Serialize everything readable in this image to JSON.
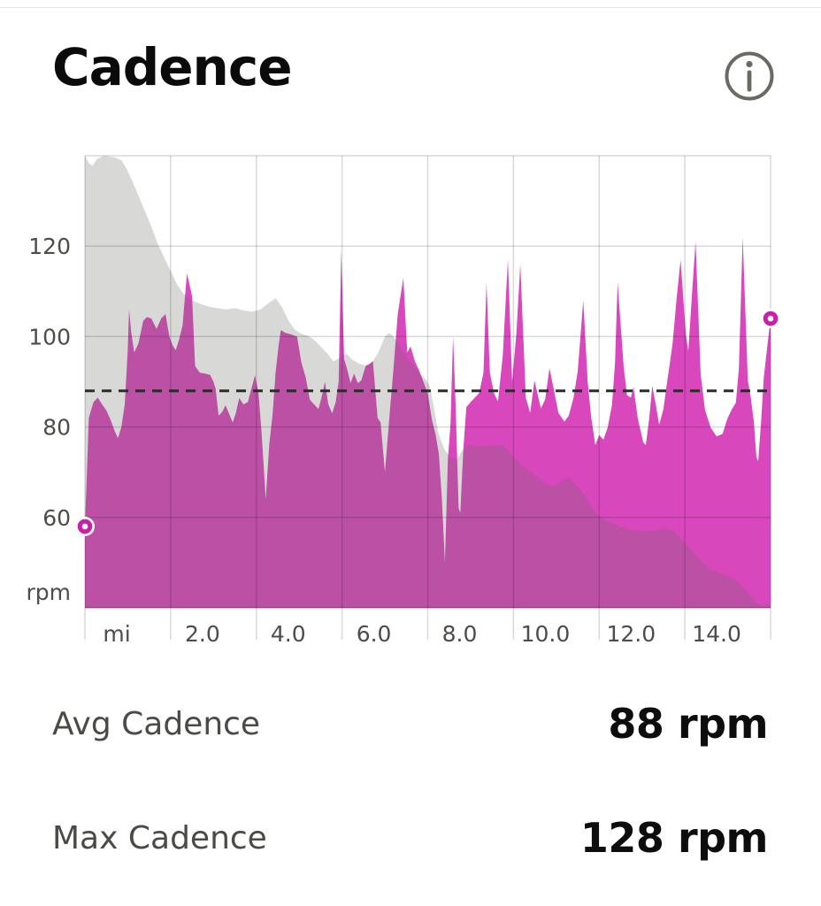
{
  "header": {
    "title": "Cadence"
  },
  "stats": [
    {
      "label": "Avg Cadence",
      "value": "88 rpm"
    },
    {
      "label": "Max Cadence",
      "value": "128 rpm"
    }
  ],
  "colors": {
    "accent_magenta": "#d848bc",
    "marker_ring": "#cc1ea8",
    "elevation_overlay": "rgba(105,105,100,0.26)",
    "avg_line": "#2b2b28",
    "grid_line": "rgba(0,0,0,0.15)",
    "axis_line": "rgba(0,0,0,0.22)",
    "axis_text": "#4c4c48",
    "icon_gray": "#6a6a63"
  },
  "chart_data": {
    "type": "area",
    "title": "Cadence",
    "grid": true,
    "legend": "none",
    "x_axis": {
      "unit_label": "mi",
      "min": 0,
      "max": 16,
      "gridline_step": 2,
      "tick_labels": [
        "mi",
        "2.0",
        "4.0",
        "6.0",
        "8.0",
        "10.0",
        "12.0",
        "14.0"
      ]
    },
    "y_axis": {
      "unit_label": "rpm",
      "min": 40,
      "max": 140,
      "tick_values": [
        60,
        80,
        100,
        120
      ]
    },
    "avg_line_rpm": 88,
    "start_marker": {
      "mi": 0,
      "rpm": 58
    },
    "end_marker": {
      "mi": 16,
      "rpm": 104
    },
    "series": [
      {
        "name": "cadence_rpm",
        "style": "area",
        "color": "#d848bc",
        "points": [
          [
            0,
            58
          ],
          [
            0.04,
            68
          ],
          [
            0.09,
            82
          ],
          [
            0.2,
            85.5
          ],
          [
            0.3,
            86.5
          ],
          [
            0.4,
            85
          ],
          [
            0.5,
            83.7
          ],
          [
            0.6,
            81.5
          ],
          [
            0.7,
            79
          ],
          [
            0.77,
            77.5
          ],
          [
            0.85,
            80
          ],
          [
            0.93,
            85
          ],
          [
            1.0,
            97
          ],
          [
            1.03,
            106
          ],
          [
            1.08,
            101
          ],
          [
            1.15,
            96.5
          ],
          [
            1.25,
            98.5
          ],
          [
            1.36,
            103.5
          ],
          [
            1.45,
            104.3
          ],
          [
            1.55,
            104
          ],
          [
            1.67,
            101.7
          ],
          [
            1.78,
            104
          ],
          [
            1.88,
            105
          ],
          [
            1.97,
            100
          ],
          [
            2.05,
            98
          ],
          [
            2.12,
            97
          ],
          [
            2.2,
            99.5
          ],
          [
            2.28,
            102.5
          ],
          [
            2.38,
            114
          ],
          [
            2.5,
            109
          ],
          [
            2.57,
            93.5
          ],
          [
            2.68,
            92
          ],
          [
            2.8,
            91.8
          ],
          [
            2.92,
            91.5
          ],
          [
            3.0,
            90
          ],
          [
            3.05,
            88.5
          ],
          [
            3.12,
            82.5
          ],
          [
            3.2,
            83.3
          ],
          [
            3.28,
            84.8
          ],
          [
            3.36,
            83
          ],
          [
            3.45,
            81
          ],
          [
            3.52,
            83
          ],
          [
            3.6,
            86.4
          ],
          [
            3.7,
            85
          ],
          [
            3.8,
            85.5
          ],
          [
            3.9,
            89
          ],
          [
            3.97,
            91.4
          ],
          [
            4.05,
            87.5
          ],
          [
            4.12,
            79
          ],
          [
            4.22,
            64
          ],
          [
            4.3,
            76
          ],
          [
            4.38,
            83
          ],
          [
            4.45,
            92
          ],
          [
            4.52,
            98
          ],
          [
            4.57,
            101.4
          ],
          [
            4.68,
            100.8
          ],
          [
            4.8,
            100.5
          ],
          [
            4.95,
            100
          ],
          [
            5.05,
            94.3
          ],
          [
            5.15,
            91
          ],
          [
            5.25,
            86
          ],
          [
            5.35,
            85
          ],
          [
            5.45,
            84
          ],
          [
            5.52,
            86.5
          ],
          [
            5.6,
            90
          ],
          [
            5.68,
            85
          ],
          [
            5.77,
            83
          ],
          [
            5.85,
            85.5
          ],
          [
            5.92,
            90
          ],
          [
            5.98,
            119
          ],
          [
            6.05,
            95
          ],
          [
            6.12,
            92.8
          ],
          [
            6.2,
            89.7
          ],
          [
            6.28,
            91.8
          ],
          [
            6.37,
            89.7
          ],
          [
            6.45,
            90.3
          ],
          [
            6.55,
            93.5
          ],
          [
            6.65,
            94
          ],
          [
            6.72,
            94.6
          ],
          [
            6.83,
            82
          ],
          [
            6.9,
            81
          ],
          [
            7.0,
            70
          ],
          [
            7.12,
            84
          ],
          [
            7.2,
            93
          ],
          [
            7.3,
            105
          ],
          [
            7.43,
            113
          ],
          [
            7.52,
            96.5
          ],
          [
            7.6,
            97.8
          ],
          [
            7.7,
            94.5
          ],
          [
            7.8,
            92.5
          ],
          [
            7.9,
            90
          ],
          [
            8.0,
            87.4
          ],
          [
            8.1,
            81.5
          ],
          [
            8.18,
            78.5
          ],
          [
            8.26,
            74
          ],
          [
            8.33,
            64
          ],
          [
            8.4,
            50
          ],
          [
            8.47,
            73
          ],
          [
            8.53,
            80.5
          ],
          [
            8.59,
            100
          ],
          [
            8.65,
            85
          ],
          [
            8.72,
            62
          ],
          [
            8.76,
            61
          ],
          [
            8.83,
            75
          ],
          [
            8.9,
            84.4
          ],
          [
            9.0,
            85.5
          ],
          [
            9.1,
            86.5
          ],
          [
            9.2,
            87.5
          ],
          [
            9.3,
            92
          ],
          [
            9.37,
            112
          ],
          [
            9.45,
            92
          ],
          [
            9.55,
            87.3
          ],
          [
            9.64,
            85.7
          ],
          [
            9.75,
            95.8
          ],
          [
            9.87,
            117
          ],
          [
            9.97,
            90
          ],
          [
            10.07,
            101
          ],
          [
            10.16,
            116
          ],
          [
            10.29,
            86.4
          ],
          [
            10.39,
            83.1
          ],
          [
            10.49,
            90.3
          ],
          [
            10.64,
            84.1
          ],
          [
            10.74,
            86.1
          ],
          [
            10.84,
            93
          ],
          [
            10.95,
            87.9
          ],
          [
            11.05,
            83.1
          ],
          [
            11.19,
            81.2
          ],
          [
            11.29,
            82.5
          ],
          [
            11.4,
            86.4
          ],
          [
            11.5,
            92.3
          ],
          [
            11.63,
            108
          ],
          [
            11.73,
            90.3
          ],
          [
            11.81,
            82.5
          ],
          [
            11.91,
            76
          ],
          [
            12.0,
            78.2
          ],
          [
            12.1,
            77.2
          ],
          [
            12.2,
            79.9
          ],
          [
            12.3,
            85
          ],
          [
            12.37,
            94.2
          ],
          [
            12.43,
            112
          ],
          [
            12.57,
            93.5
          ],
          [
            12.65,
            87
          ],
          [
            12.74,
            86.5
          ],
          [
            12.8,
            88.9
          ],
          [
            12.9,
            82
          ],
          [
            13.03,
            76.6
          ],
          [
            13.09,
            76
          ],
          [
            13.17,
            82
          ],
          [
            13.24,
            89.1
          ],
          [
            13.32,
            85
          ],
          [
            13.4,
            80.5
          ],
          [
            13.5,
            84
          ],
          [
            13.57,
            88.9
          ],
          [
            13.71,
            98.2
          ],
          [
            13.81,
            108.6
          ],
          [
            13.9,
            117
          ],
          [
            14.02,
            100.7
          ],
          [
            14.08,
            96.8
          ],
          [
            14.17,
            110
          ],
          [
            14.25,
            121
          ],
          [
            14.37,
            91.6
          ],
          [
            14.47,
            83.8
          ],
          [
            14.6,
            79.9
          ],
          [
            14.74,
            77.9
          ],
          [
            14.88,
            78.5
          ],
          [
            14.99,
            81.8
          ],
          [
            15.09,
            83.8
          ],
          [
            15.19,
            85.4
          ],
          [
            15.26,
            93
          ],
          [
            15.35,
            122
          ],
          [
            15.47,
            90.3
          ],
          [
            15.53,
            87
          ],
          [
            15.61,
            81.2
          ],
          [
            15.67,
            73.3
          ],
          [
            15.71,
            72.4
          ],
          [
            15.78,
            81.2
          ],
          [
            15.84,
            90.9
          ],
          [
            15.92,
            97.5
          ],
          [
            16,
            104
          ]
        ]
      },
      {
        "name": "elevation_profile_overlay",
        "style": "area",
        "color": "rgba(105,105,100,0.26)",
        "points": [
          [
            0,
            140
          ],
          [
            0.1,
            138.3
          ],
          [
            0.18,
            137.8
          ],
          [
            0.28,
            139.3
          ],
          [
            0.45,
            140
          ],
          [
            0.7,
            139.6
          ],
          [
            0.85,
            139
          ],
          [
            0.95,
            137.5
          ],
          [
            1.1,
            134.5
          ],
          [
            1.3,
            130
          ],
          [
            1.5,
            125.5
          ],
          [
            1.7,
            120.5
          ],
          [
            1.85,
            117.5
          ],
          [
            2.0,
            114.5
          ],
          [
            2.15,
            111.5
          ],
          [
            2.3,
            109.5
          ],
          [
            2.5,
            108
          ],
          [
            2.7,
            107.2
          ],
          [
            2.9,
            106.6
          ],
          [
            3.1,
            106.3
          ],
          [
            3.3,
            106
          ],
          [
            3.5,
            106.3
          ],
          [
            3.7,
            105.8
          ],
          [
            3.9,
            105.5
          ],
          [
            4.1,
            106
          ],
          [
            4.3,
            107.5
          ],
          [
            4.45,
            108.5
          ],
          [
            4.6,
            106.5
          ],
          [
            4.75,
            103.5
          ],
          [
            4.9,
            101.5
          ],
          [
            5.05,
            100.6
          ],
          [
            5.2,
            100.2
          ],
          [
            5.35,
            99.3
          ],
          [
            5.5,
            97.8
          ],
          [
            5.65,
            96.3
          ],
          [
            5.8,
            94.5
          ],
          [
            5.95,
            95.3
          ],
          [
            6.1,
            96.2
          ],
          [
            6.25,
            94.8
          ],
          [
            6.4,
            94
          ],
          [
            6.55,
            93.6
          ],
          [
            6.7,
            94.2
          ],
          [
            6.85,
            96.5
          ],
          [
            7.0,
            100
          ],
          [
            7.1,
            100.8
          ],
          [
            7.2,
            100
          ],
          [
            7.35,
            97.8
          ],
          [
            7.5,
            95.5
          ],
          [
            7.65,
            93.8
          ],
          [
            7.8,
            91.8
          ],
          [
            7.95,
            90.5
          ],
          [
            8.05,
            89
          ],
          [
            8.15,
            84
          ],
          [
            8.25,
            78.5
          ],
          [
            8.4,
            74.8
          ],
          [
            8.55,
            73.2
          ],
          [
            8.68,
            72.8
          ],
          [
            8.8,
            74.8
          ],
          [
            8.95,
            76
          ],
          [
            9.2,
            75.8
          ],
          [
            9.5,
            75.9
          ],
          [
            9.75,
            76
          ],
          [
            9.9,
            74.5
          ],
          [
            10.0,
            73.3
          ],
          [
            10.2,
            71.5
          ],
          [
            10.4,
            70.1
          ],
          [
            10.6,
            68.6
          ],
          [
            10.78,
            67.2
          ],
          [
            10.9,
            66.8
          ],
          [
            11.02,
            67.4
          ],
          [
            11.15,
            68.2
          ],
          [
            11.28,
            68.9
          ],
          [
            11.42,
            67.6
          ],
          [
            11.55,
            66
          ],
          [
            11.68,
            64.8
          ],
          [
            11.8,
            62.5
          ],
          [
            11.92,
            60.8
          ],
          [
            12.05,
            59.9
          ],
          [
            12.2,
            59.3
          ],
          [
            12.4,
            58.3
          ],
          [
            12.6,
            57.6
          ],
          [
            12.8,
            57.1
          ],
          [
            13.0,
            57
          ],
          [
            13.2,
            57
          ],
          [
            13.35,
            57.2
          ],
          [
            13.5,
            57.7
          ],
          [
            13.62,
            57.4
          ],
          [
            13.75,
            57
          ],
          [
            13.88,
            55.5
          ],
          [
            14.0,
            54.4
          ],
          [
            14.15,
            52.8
          ],
          [
            14.3,
            51.2
          ],
          [
            14.45,
            49.8
          ],
          [
            14.6,
            48.6
          ],
          [
            14.75,
            47.9
          ],
          [
            14.9,
            47.5
          ],
          [
            15.05,
            46.8
          ],
          [
            15.2,
            46
          ],
          [
            15.35,
            44.5
          ],
          [
            15.5,
            43
          ],
          [
            15.65,
            41.3
          ],
          [
            15.78,
            40.7
          ],
          [
            15.85,
            40.4
          ],
          [
            15.92,
            41
          ],
          [
            16,
            40.2
          ]
        ]
      }
    ]
  }
}
